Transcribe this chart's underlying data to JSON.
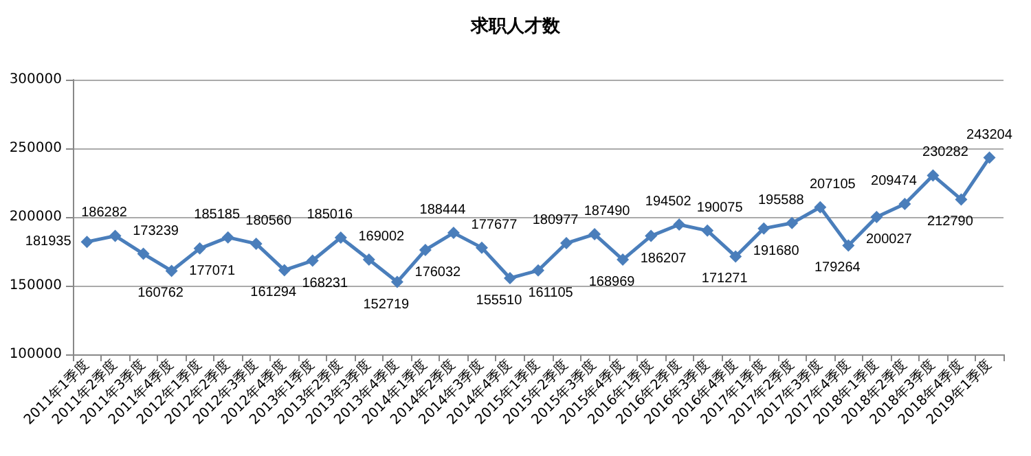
{
  "chart_data": {
    "type": "line",
    "title": "求职人才数",
    "categories": [
      "2011年1季度",
      "2011年2季度",
      "2011年3季度",
      "2011年4季度",
      "2012年1季度",
      "2012年2季度",
      "2012年3季度",
      "2012年4季度",
      "2013年1季度",
      "2013年2季度",
      "2013年3季度",
      "2013年4季度",
      "2014年1季度",
      "2014年2季度",
      "2014年3季度",
      "2014年4季度",
      "2015年1季度",
      "2015年2季度",
      "2015年3季度",
      "2015年4季度",
      "2016年1季度",
      "2016年2季度",
      "2016年3季度",
      "2016年4季度",
      "2017年1季度",
      "2017年2季度",
      "2017年3季度",
      "2017年4季度",
      "2018年1季度",
      "2018年2季度",
      "2018年3季度",
      "2018年4季度",
      "2019年1季度"
    ],
    "series": [
      {
        "color": "#4a7ebb",
        "values": [
          181935,
          186282,
          173239,
          160762,
          177071,
          185185,
          180560,
          161294,
          168231,
          185016,
          169002,
          152719,
          176032,
          188444,
          177677,
          155510,
          161105,
          180977,
          187490,
          168969,
          186207,
          194502,
          190075,
          171271,
          191680,
          195588,
          207105,
          179264,
          200027,
          209474,
          230282,
          212790,
          243204
        ]
      }
    ],
    "ylim": [
      100000,
      300000
    ],
    "yticks": [
      100000,
      150000,
      200000,
      250000,
      300000
    ],
    "grid": "y",
    "marker": "diamond",
    "line_style": "solid",
    "data_labels": true
  }
}
